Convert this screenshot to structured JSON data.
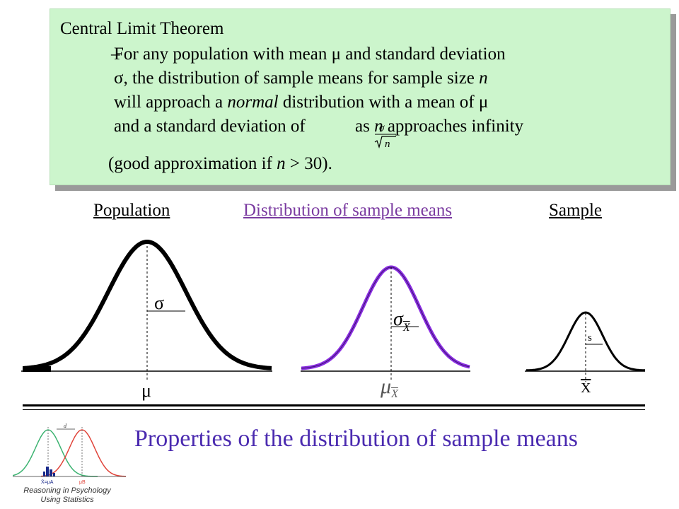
{
  "theorem": {
    "title": "Central Limit Theorem",
    "dash": "–",
    "line1": "For any population with mean μ and standard deviation",
    "line2_a": "σ, the distribution of sample means for sample size ",
    "line2_n": "n",
    "line3_a": "will approach a ",
    "line3_normal": "normal",
    "line3_b": " distribution with a mean of μ",
    "line4_a": "and a standard deviation of",
    "line4_b": " as ",
    "line4_n": "n",
    "line4_c": " approaches infinity",
    "frac_num": "σ",
    "frac_den": "n",
    "approx_a": "(good approximation if ",
    "approx_n": "n",
    "approx_b": " > 30)."
  },
  "headings": {
    "population": "Population",
    "sampling": "Distribution of sample means",
    "sample": "Sample"
  },
  "symbols": {
    "pop_sd": "σ",
    "pop_mean": "μ",
    "dist_sd": "σ",
    "dist_sd_sub": "X",
    "dist_mean": "μ",
    "dist_mean_sub": "X",
    "sample_sd": "s",
    "sample_mean": "X"
  },
  "footer": {
    "title": "Properties of the distribution of sample means",
    "logo_line1": "Reasoning in Psychology",
    "logo_line2": "Using Statistics",
    "logo_d": "d",
    "logo_xlabel": "X̄=μA",
    "logo_mub": "μB"
  },
  "colors": {
    "box_bg": "#ccf5cc",
    "sampling_curve": "#8a2be2",
    "sampling_heading": "#7a3aa0",
    "footer_title": "#4b2bb0",
    "logo_green": "#3cb371",
    "logo_red": "#e0443a"
  }
}
